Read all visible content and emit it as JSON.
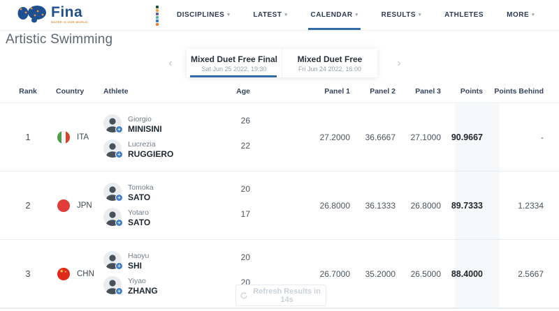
{
  "colors": {
    "accent_blue": "#2e6da4",
    "brand_blue": "#1d4f91",
    "brand_orange": "#e8862d",
    "points_column_bg": "#f7f8f9",
    "discipline_dots": [
      "#1c4f38",
      "#f2a03b",
      "#5b5aa5",
      "#4fb8ae",
      "#2f7bd0",
      "#ef7d26"
    ],
    "flag_ita": [
      "#4f9e49",
      "#f4f6f5",
      "#d8432e"
    ],
    "flag_jpn": "#e03c38",
    "flag_chn": "#de2a18"
  },
  "icons": {
    "chevron_down": "▾",
    "chevron_left": "‹",
    "chevron_right": "›",
    "plus": "+",
    "star": "★"
  },
  "header": {
    "logo": {
      "name": "Fina",
      "tagline": "WATER IS OUR WORLD"
    },
    "nav": [
      {
        "label": "DISCIPLINES"
      },
      {
        "label": "LATEST"
      },
      {
        "label": "CALENDAR"
      },
      {
        "label": "RESULTS"
      },
      {
        "label": "ATHLETES"
      },
      {
        "label": "MORE"
      }
    ]
  },
  "page": {
    "title": "Artistic Swimming"
  },
  "switcher": {
    "tabs": [
      {
        "title": "Mixed Duet Free Final",
        "subtitle": "Sat Jun 25 2022, 19:30"
      },
      {
        "title": "Mixed Duet Free",
        "subtitle": "Fri Jun 24 2022, 16:00"
      }
    ]
  },
  "table": {
    "columns": {
      "rank": "Rank",
      "country": "Country",
      "athlete": "Athlete",
      "age": "Age",
      "panel1": "Panel 1",
      "panel2": "Panel 2",
      "panel3": "Panel 3",
      "points": "Points",
      "points_behind": "Points Behind"
    },
    "rows": [
      {
        "rank": "1",
        "country": "ITA",
        "athletes": [
          {
            "first": "Giorgio",
            "last": "MINISINI",
            "age": "26"
          },
          {
            "first": "Lucrezia",
            "last": "RUGGIERO",
            "age": "22"
          }
        ],
        "panel1": "27.2000",
        "panel2": "36.6667",
        "panel3": "27.1000",
        "points": "90.9667",
        "points_behind": "-"
      },
      {
        "rank": "2",
        "country": "JPN",
        "athletes": [
          {
            "first": "Tomoka",
            "last": "SATO",
            "age": "20"
          },
          {
            "first": "Yotaro",
            "last": "SATO",
            "age": "17"
          }
        ],
        "panel1": "26.8000",
        "panel2": "36.1333",
        "panel3": "26.8000",
        "points": "89.7333",
        "points_behind": "1.2334"
      },
      {
        "rank": "3",
        "country": "CHN",
        "athletes": [
          {
            "first": "Haoyu",
            "last": "SHI",
            "age": "20"
          },
          {
            "first": "Yiyao",
            "last": "ZHANG",
            "age": "20"
          }
        ],
        "panel1": "26.7000",
        "panel2": "35.2000",
        "panel3": "26.5000",
        "points": "88.4000",
        "points_behind": "2.5667"
      }
    ]
  },
  "refresh": {
    "label": "Refresh Results in 14s"
  }
}
